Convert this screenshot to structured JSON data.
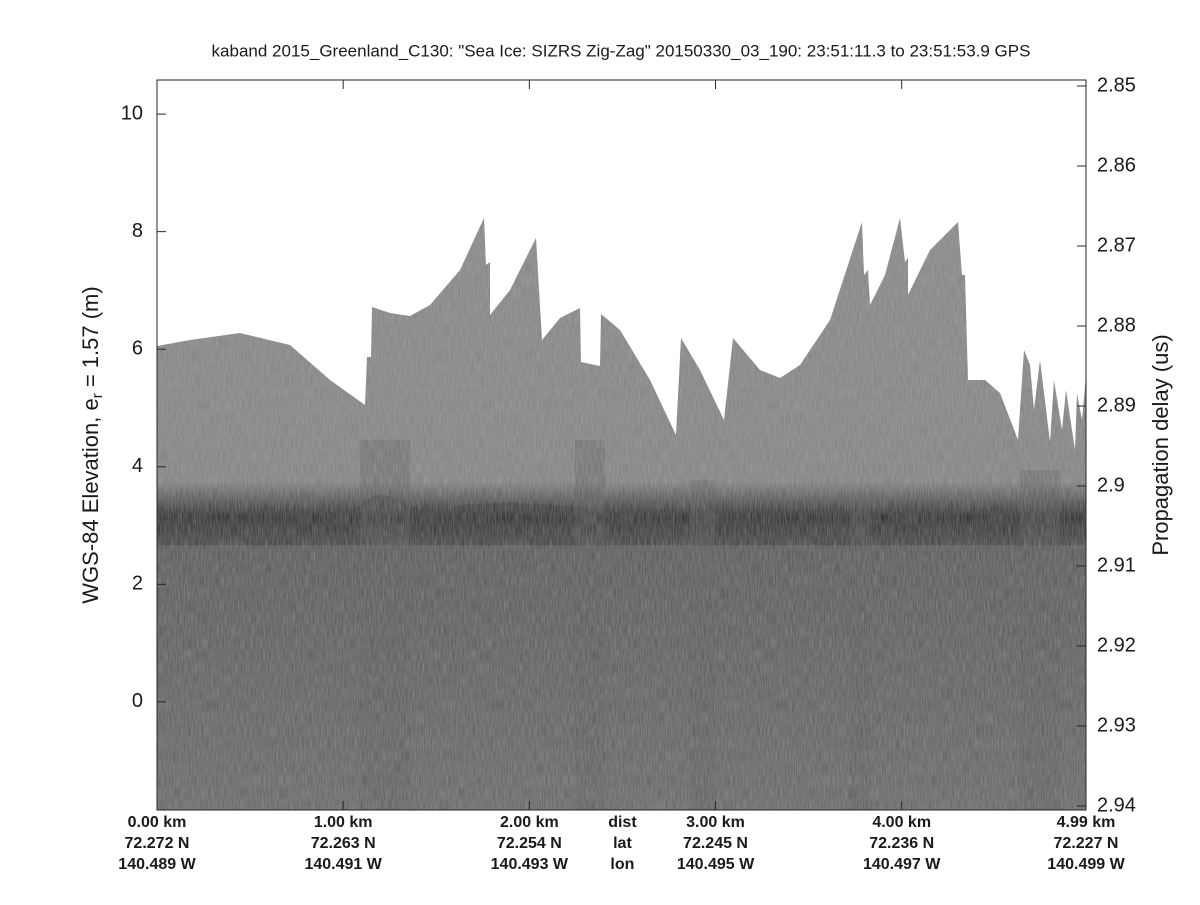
{
  "chart_data": {
    "type": "echogram",
    "title": "kaband 2015_Greenland_C130: \"Sea Ice: SIZRS Zig-Zag\"  20150330_03_190: 23:51:11.3 to 23:51:53.9 GPS",
    "y_label": {
      "main": "WGS-84 Elevation, e",
      "sub": "r",
      "rest": " = 1.57 (m)"
    },
    "y2_label": "Propagation delay (us)",
    "xlim": [
      0,
      4.99
    ],
    "xticks": [
      {
        "value": 0,
        "label": "0.00 km"
      },
      {
        "value": 1,
        "label": "1.00 km"
      },
      {
        "value": 2,
        "label": "2.00 km"
      },
      {
        "value": 3,
        "label": "3.00 km"
      },
      {
        "value": 4,
        "label": "4.00 km"
      },
      {
        "value": 4.99,
        "label": "4.99 km"
      }
    ],
    "xtick_lat": [
      "72.272 N",
      "72.263 N",
      "72.254 N",
      "72.245 N",
      "72.236 N",
      "72.227 N"
    ],
    "xtick_lon": [
      "140.489 W",
      "140.491 W",
      "140.493 W",
      "140.495 W",
      "140.497 W",
      "140.499 W"
    ],
    "x_row_names": [
      "dist",
      "lat",
      "lon"
    ],
    "ylim": [
      -1.84,
      10.58
    ],
    "yticks": [
      0,
      2,
      4,
      6,
      8,
      10
    ],
    "y2lim": [
      2.9405,
      2.84925
    ],
    "y2ticks": [
      2.85,
      2.86,
      2.87,
      2.88,
      2.89,
      2.9,
      2.91,
      2.92,
      2.93,
      2.94
    ]
  }
}
